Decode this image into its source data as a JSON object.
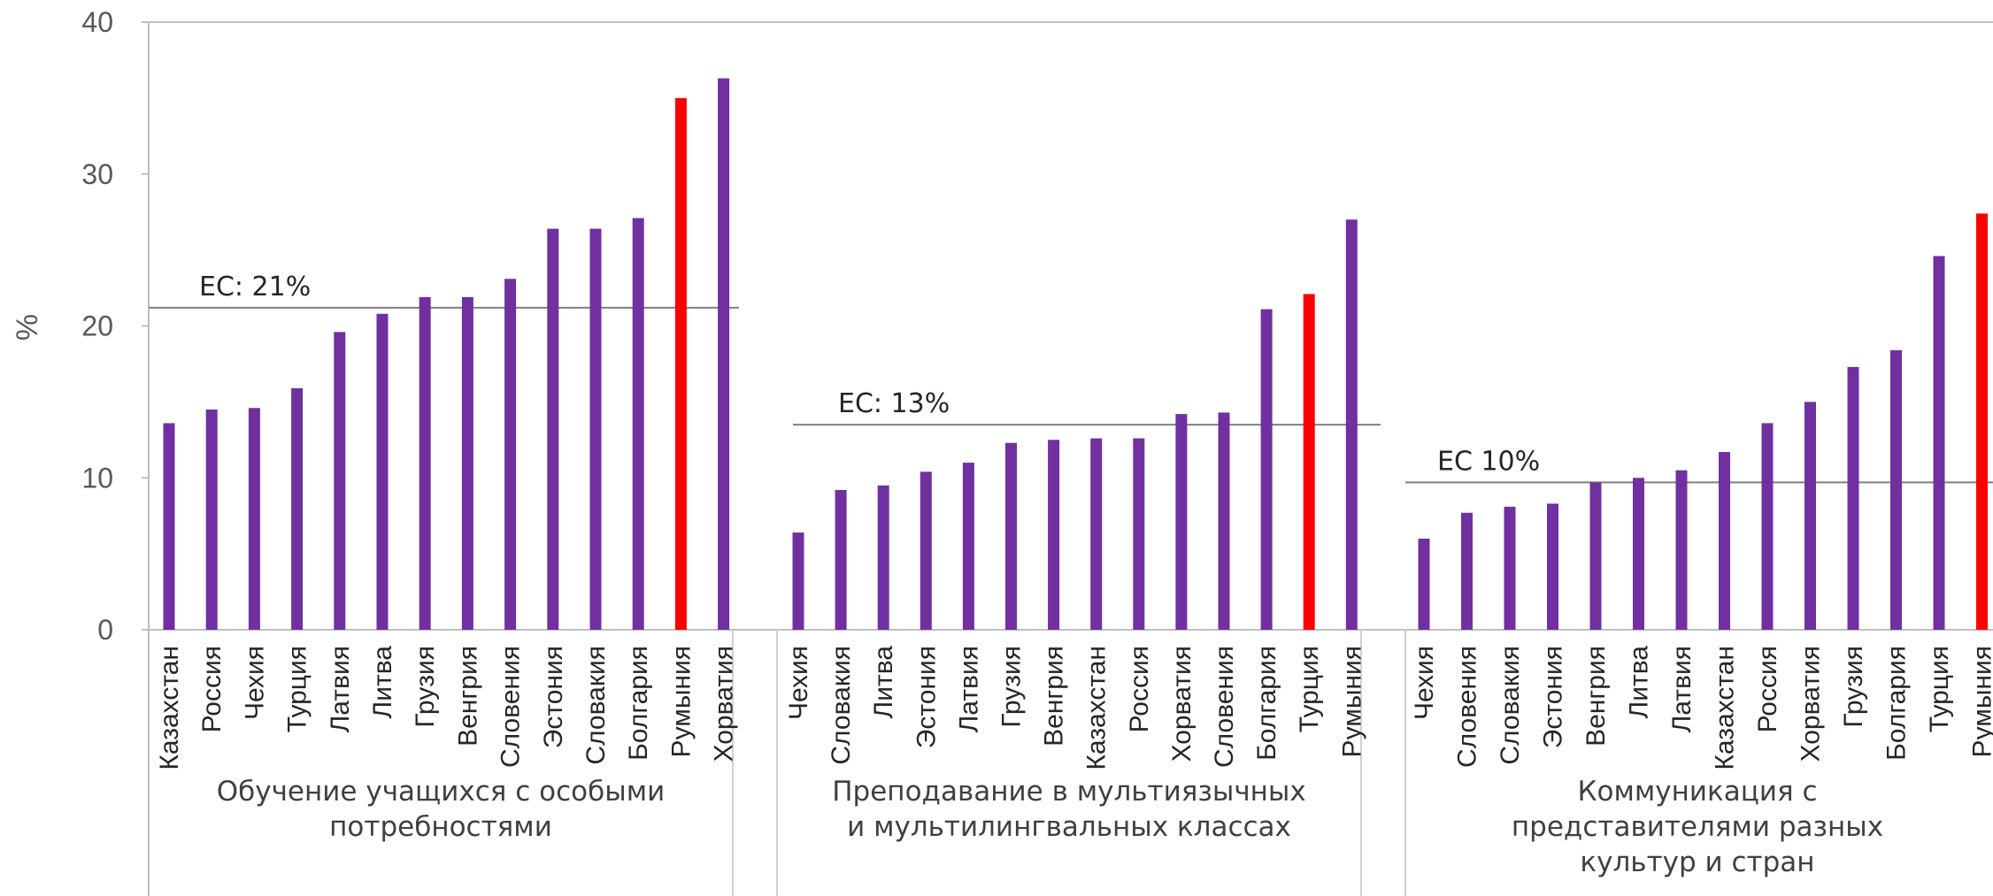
{
  "chart_data": {
    "type": "bar",
    "ylabel": "%",
    "ylim": [
      0,
      40
    ],
    "yticks": [
      0,
      10,
      20,
      30,
      40
    ],
    "grid": false,
    "legend": "none",
    "colors": {
      "default": "#7030A0",
      "highlight": "#FF0000",
      "reference": "#7F7F7F"
    },
    "groups": [
      {
        "label_lines": [
          "Обучение учащихся с особыми",
          "потребностями"
        ],
        "reference": {
          "label": "ЕС: 21%",
          "value": 21.2
        },
        "highlight": "Румыния",
        "categories": [
          "Казахстан",
          "Россия",
          "Чехия",
          "Турция",
          "Латвия",
          "Литва",
          "Грузия",
          "Венгрия",
          "Словения",
          "Эстония",
          "Словакия",
          "Болгария",
          "Румыния",
          "Хорватия"
        ],
        "values": [
          13.6,
          14.5,
          14.6,
          15.9,
          19.6,
          20.8,
          21.9,
          21.9,
          23.1,
          26.4,
          26.4,
          27.1,
          35.0,
          36.3
        ]
      },
      {
        "label_lines": [
          "Преподавание в мультиязычных",
          "и мультилингвальных классах"
        ],
        "reference": {
          "label": "ЕС: 13%",
          "value": 13.5
        },
        "highlight": "Турция",
        "categories": [
          "Чехия",
          "Словакия",
          "Литва",
          "Эстония",
          "Латвия",
          "Грузия",
          "Венгрия",
          "Казахстан",
          "Россия",
          "Хорватия",
          "Словения",
          "Болгария",
          "Турция",
          "Румыния"
        ],
        "values": [
          6.4,
          9.2,
          9.5,
          10.4,
          11.0,
          12.3,
          12.5,
          12.6,
          12.6,
          14.2,
          14.3,
          21.1,
          22.1,
          27.0
        ]
      },
      {
        "label_lines": [
          "Коммуникация с",
          "представителями разных",
          "культур и стран"
        ],
        "reference": {
          "label": "ЕС 10%",
          "value": 9.7
        },
        "highlight": "Румыния",
        "categories": [
          "Чехия",
          "Словения",
          "Словакия",
          "Эстония",
          "Венгрия",
          "Литва",
          "Латвия",
          "Казахстан",
          "Россия",
          "Хорватия",
          "Грузия",
          "Болгария",
          "Турция",
          "Румыния"
        ],
        "values": [
          6.0,
          7.7,
          8.1,
          8.3,
          9.7,
          10.0,
          10.5,
          11.7,
          13.6,
          15.0,
          17.3,
          18.4,
          24.6,
          27.4
        ]
      }
    ]
  }
}
